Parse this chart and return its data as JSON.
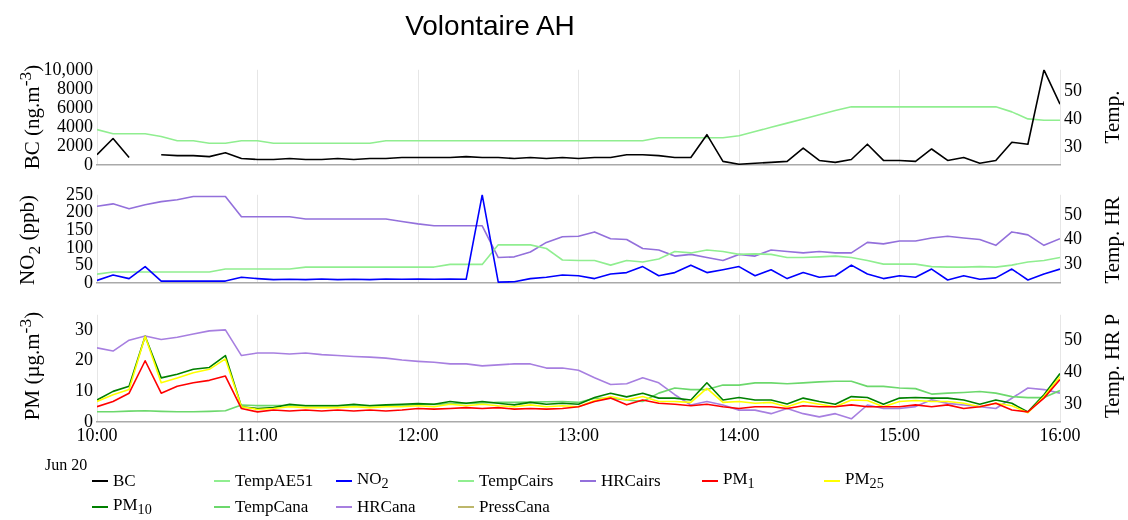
{
  "chart_data": [
    {
      "type": "line",
      "title": "Volontaire AH",
      "ylabel": "BC (ng.m$^{-3}$)",
      "y2label": "Temp.",
      "grid": "x",
      "legend": "bottom",
      "tick_labels": "y",
      "xlim": [
        10,
        16
      ],
      "xticks": [
        {
          "value": 10,
          "label": null
        },
        {
          "value": 11,
          "label": null
        },
        {
          "value": 12,
          "label": null
        },
        {
          "value": 13,
          "label": null
        },
        {
          "value": 14,
          "label": null
        },
        {
          "value": 15,
          "label": null
        },
        {
          "value": 16,
          "label": null
        }
      ],
      "ylim": [
        0,
        10000
      ],
      "yticks": [
        0,
        2000,
        4000,
        6000,
        8000,
        {
          "value": 10000,
          "label": "10,000"
        }
      ],
      "y2lim": [
        23.5,
        57.5
      ],
      "y2ticks": [
        30,
        40,
        50
      ],
      "x": [
        10,
        10.1,
        10.2,
        10.3,
        10.4,
        10.5,
        10.6,
        10.7,
        10.8,
        10.9,
        11,
        11.1,
        11.2,
        11.3,
        11.4,
        11.5,
        11.6,
        11.7,
        11.8,
        11.9,
        12,
        12.1,
        12.2,
        12.3,
        12.4,
        12.5,
        12.6,
        12.7,
        12.8,
        12.9,
        13,
        13.1,
        13.2,
        13.3,
        13.4,
        13.5,
        13.6,
        13.7,
        13.8,
        13.9,
        14,
        14.1,
        14.2,
        14.3,
        14.4,
        14.5,
        14.6,
        14.7,
        14.8,
        14.9,
        15,
        15.1,
        15.2,
        15.3,
        15.4,
        15.5,
        15.6,
        15.7,
        15.8,
        15.9,
        16
      ],
      "series": [
        {
          "name": "BC",
          "color": "#000000",
          "values": [
            1100,
            2800,
            800,
            null,
            1100,
            1000,
            1000,
            900,
            1300,
            700,
            600,
            600,
            700,
            600,
            600,
            700,
            600,
            700,
            700,
            800,
            800,
            800,
            800,
            900,
            800,
            800,
            700,
            800,
            700,
            800,
            700,
            800,
            800,
            1100,
            1100,
            1000,
            800,
            800,
            3200,
            400,
            100,
            200,
            300,
            400,
            1800,
            500,
            300,
            600,
            2200,
            500,
            500,
            400,
            1700,
            500,
            800,
            200,
            500,
            2400,
            2200,
            10000,
            6400
          ]
        },
        {
          "name": "TempAE51",
          "color": "#90ee90",
          "axis": "y2",
          "values": [
            36.2,
            34.7,
            34.7,
            34.7,
            33.7,
            32.2,
            32.2,
            31.3,
            31.3,
            32.2,
            32.2,
            31.3,
            31.3,
            31.3,
            31.3,
            31.3,
            31.3,
            31.3,
            32.2,
            32.2,
            32.2,
            32.2,
            32.2,
            32.2,
            32.2,
            32.2,
            32.2,
            32.2,
            32.2,
            32.2,
            32.2,
            32.2,
            32.2,
            32.2,
            32.2,
            33.3,
            33.3,
            33.3,
            33.3,
            33.3,
            34,
            35.5,
            37,
            38.5,
            40,
            41.5,
            43,
            44.3,
            44.3,
            44.3,
            44.3,
            44.3,
            44.3,
            44.3,
            44.3,
            44.3,
            44.3,
            42.5,
            40,
            39.5,
            39.5
          ]
        }
      ]
    },
    {
      "type": "line",
      "ylabel": "NO$_{2}$ (ppb)",
      "y2label": "Temp. HR",
      "grid": "x",
      "legend": "bottom",
      "tick_labels": "y",
      "xlim": [
        10,
        16
      ],
      "xticks": [
        {
          "value": 10,
          "label": null
        },
        {
          "value": 11,
          "label": null
        },
        {
          "value": 12,
          "label": null
        },
        {
          "value": 13,
          "label": null
        },
        {
          "value": 14,
          "label": null
        },
        {
          "value": 15,
          "label": null
        },
        {
          "value": 16,
          "label": null
        }
      ],
      "ylim": [
        0,
        250
      ],
      "yticks": [
        0,
        50,
        100,
        150,
        200,
        250
      ],
      "y2lim": [
        22.2,
        58.4
      ],
      "y2ticks": [
        30,
        40,
        50
      ],
      "x": [
        10,
        10.1,
        10.2,
        10.3,
        10.4,
        10.5,
        10.6,
        10.7,
        10.8,
        10.9,
        11,
        11.1,
        11.2,
        11.3,
        11.4,
        11.5,
        11.6,
        11.7,
        11.8,
        11.9,
        12,
        12.1,
        12.2,
        12.3,
        12.4,
        12.5,
        12.6,
        12.7,
        12.8,
        12.9,
        13,
        13.1,
        13.2,
        13.3,
        13.4,
        13.5,
        13.6,
        13.7,
        13.8,
        13.9,
        14,
        14.1,
        14.2,
        14.3,
        14.4,
        14.5,
        14.6,
        14.7,
        14.8,
        14.9,
        15,
        15.1,
        15.2,
        15.3,
        15.4,
        15.5,
        15.6,
        15.7,
        15.8,
        15.9,
        16
      ],
      "series": [
        {
          "name": "NO$_{2}$",
          "color": "#0000ff",
          "values": [
            8,
            23,
            13,
            47,
            6,
            6,
            6,
            6,
            6,
            17,
            13,
            10,
            11,
            10,
            12,
            10,
            11,
            10,
            12,
            11,
            12,
            11,
            12,
            11,
            250,
            3,
            4,
            13,
            17,
            23,
            21,
            13,
            26,
            30,
            47,
            21,
            30,
            51,
            30,
            38,
            47,
            21,
            38,
            13,
            30,
            17,
            21,
            51,
            26,
            13,
            21,
            17,
            40,
            9,
            21,
            11,
            15,
            40,
            9,
            26,
            40
          ]
        },
        {
          "name": "TempCairs",
          "color": "#90ee90",
          "axis": "y2",
          "values": [
            25.9,
            26.8,
            26.8,
            26.8,
            26.8,
            26.8,
            26.8,
            26.8,
            28,
            28,
            28,
            28,
            28,
            28.8,
            28.8,
            28.8,
            28.8,
            28.8,
            28.8,
            28.8,
            28.8,
            28.8,
            29.9,
            29.9,
            29.9,
            37.9,
            37.9,
            37.9,
            36.4,
            31.7,
            31.5,
            31.5,
            29.6,
            31.5,
            30.9,
            32.1,
            35.2,
            34.6,
            35.8,
            35.2,
            34,
            34.2,
            34,
            32.7,
            32.7,
            33,
            33.3,
            32.7,
            31.5,
            30,
            30,
            30,
            29,
            28.8,
            28.8,
            29,
            28.8,
            29.6,
            30.9,
            31.5,
            32.7
          ]
        },
        {
          "name": "HRCairs",
          "color": "#9370db",
          "axis": "y2",
          "values": [
            53.7,
            54.7,
            52.7,
            54.3,
            55.6,
            56.4,
            57.7,
            57.7,
            57.7,
            49.4,
            49.4,
            49.4,
            49.4,
            48.5,
            48.5,
            48.5,
            48.5,
            48.5,
            48.5,
            47.5,
            46.5,
            45.7,
            45.7,
            45.7,
            45.7,
            32.7,
            33,
            35,
            38.9,
            41.2,
            41.4,
            43.2,
            40.4,
            40.1,
            36.4,
            35.8,
            33.3,
            34,
            32.7,
            31.5,
            34,
            33.3,
            35.8,
            35.2,
            34.6,
            35.2,
            34.6,
            34.6,
            38.9,
            38.3,
            39.5,
            39.5,
            40.7,
            41.4,
            40.7,
            40.1,
            37.7,
            43.2,
            42,
            37.7,
            40.4
          ]
        }
      ]
    },
    {
      "type": "line",
      "ylabel": "PM (µg.m$^{-3}$)",
      "y2label": "Temp. HR P",
      "grid": "x",
      "legend": "bottom",
      "annotations": [
        "Jun 20"
      ],
      "xlim": [
        10,
        16
      ],
      "xticks": [
        {
          "value": 10,
          "label": "10:00"
        },
        {
          "value": 11,
          "label": "11:00"
        },
        {
          "value": 12,
          "label": "12:00"
        },
        {
          "value": 13,
          "label": "13:00"
        },
        {
          "value": 14,
          "label": "14:00"
        },
        {
          "value": 15,
          "label": "15:00"
        },
        {
          "value": 16,
          "label": "16:00"
        }
      ],
      "ylim": [
        0,
        35
      ],
      "yticks": [
        0,
        10,
        20,
        30
      ],
      "y2lim": [
        24.5,
        57.9
      ],
      "y2ticks": [
        30,
        40,
        50
      ],
      "x": [
        10,
        10.1,
        10.2,
        10.3,
        10.4,
        10.5,
        10.6,
        10.7,
        10.8,
        10.9,
        11,
        11.1,
        11.2,
        11.3,
        11.4,
        11.5,
        11.6,
        11.7,
        11.8,
        11.9,
        12,
        12.1,
        12.2,
        12.3,
        12.4,
        12.5,
        12.6,
        12.7,
        12.8,
        12.9,
        13,
        13.1,
        13.2,
        13.3,
        13.4,
        13.5,
        13.6,
        13.7,
        13.8,
        13.9,
        14,
        14.1,
        14.2,
        14.3,
        14.4,
        14.5,
        14.6,
        14.7,
        14.8,
        14.9,
        15,
        15.1,
        15.2,
        15.3,
        15.4,
        15.5,
        15.6,
        15.7,
        15.8,
        15.9,
        16
      ],
      "series": [
        {
          "name": "PM$_{1}$",
          "color": "#ff0000",
          "values": [
            5,
            6.7,
            9.4,
            20,
            9.4,
            11.7,
            12.8,
            13.6,
            15,
            4.4,
            3.3,
            3.9,
            3.6,
            3.9,
            3.6,
            3.9,
            3.6,
            3.9,
            3.6,
            3.9,
            4.4,
            4.2,
            4.4,
            4.7,
            4.4,
            4.7,
            4.2,
            4.4,
            4.2,
            4.4,
            5,
            6.7,
            7.8,
            5.6,
            7.2,
            6.1,
            5.8,
            5.3,
            5.8,
            5,
            4.4,
            5,
            5,
            4.4,
            5.3,
            5,
            5,
            5.6,
            5,
            5,
            5,
            5.6,
            5,
            5.6,
            4.4,
            5,
            6.1,
            3.9,
            3.3,
            7.8,
            13.9
          ]
        },
        {
          "name": "PM$_{25}$",
          "color": "#ffff00",
          "values": [
            6.7,
            8.9,
            10.6,
            28,
            12.8,
            14.4,
            16.1,
            17.2,
            20.6,
            5,
            4.1,
            4.4,
            5,
            4.7,
            4.7,
            4.7,
            5,
            4.7,
            5,
            5,
            5.3,
            5,
            5.8,
            5.3,
            5.8,
            5.3,
            5,
            5.6,
            5,
            5.3,
            5,
            7,
            8.3,
            7.2,
            8.3,
            6.7,
            6.7,
            6.4,
            11,
            6.4,
            6.7,
            6.1,
            6.4,
            5,
            6.7,
            5.8,
            5,
            7.2,
            7,
            5,
            6.7,
            7,
            6.7,
            6.7,
            6.1,
            5,
            6.1,
            5.3,
            3,
            8.3,
            14.8
          ]
        },
        {
          "name": "PM$_{10}$",
          "color": "#008000",
          "values": [
            7.2,
            10,
            11.7,
            28,
            14.4,
            15.6,
            17.2,
            17.8,
            21.7,
            5,
            4.4,
            4.7,
            5.8,
            5.3,
            5.3,
            5.3,
            5.8,
            5.3,
            5.6,
            5.8,
            6,
            5.8,
            6.7,
            6.1,
            6.7,
            6.1,
            5.6,
            6.4,
            5.8,
            6.1,
            5.8,
            8,
            9.4,
            8.2,
            9.4,
            7.8,
            7.8,
            7.2,
            12.8,
            7.2,
            8,
            7.2,
            7.2,
            5.9,
            7.8,
            6.7,
            5.8,
            8.3,
            8,
            5.8,
            7.8,
            8,
            7.8,
            7.8,
            7.2,
            5.8,
            7.2,
            6.1,
            3.3,
            8.9,
            15.8
          ]
        },
        {
          "name": "TempCana",
          "color": "#6cd86c",
          "axis": "y2",
          "values": [
            27.7,
            27.7,
            27.9,
            28,
            27.8,
            27.7,
            27.7,
            27.8,
            28,
            29.8,
            29.6,
            29.6,
            29.6,
            29.6,
            29.6,
            29.6,
            29.6,
            29.6,
            29.6,
            29.6,
            30,
            30,
            30.2,
            30.3,
            30.4,
            30.6,
            30.6,
            30.7,
            30.8,
            30.9,
            30.6,
            31.9,
            31.9,
            31.4,
            30.9,
            33.5,
            35.1,
            34.6,
            34.6,
            36,
            36,
            36.7,
            36.7,
            36.4,
            36.7,
            37,
            37.2,
            37.2,
            35.6,
            35.6,
            35.1,
            34.9,
            33.2,
            33.5,
            33.7,
            34,
            33.5,
            32.4,
            32.1,
            32.1,
            34.3
          ]
        },
        {
          "name": "HRCana",
          "color": "#a77fe0",
          "axis": "y2",
          "values": [
            47.6,
            46.6,
            50,
            51.3,
            50.2,
            50.9,
            51.9,
            52.9,
            53.2,
            45.2,
            46,
            46,
            45.7,
            46,
            45.5,
            45.2,
            44.9,
            44.7,
            44.4,
            43.8,
            43.4,
            43.1,
            42.6,
            42.6,
            42,
            42.3,
            42.6,
            42.6,
            41.3,
            41.3,
            40.6,
            38.3,
            36.2,
            36.4,
            38.3,
            36.7,
            33,
            29.8,
            30.9,
            29.8,
            28.2,
            28.2,
            27.1,
            28.7,
            27.1,
            26.1,
            27.1,
            25.5,
            29.8,
            28.7,
            28.7,
            29.3,
            31.4,
            30.3,
            29.8,
            29.3,
            28.7,
            31.9,
            35.1,
            34.6,
            33.5
          ]
        },
        {
          "name": "PressCana",
          "color": "#bdb76b",
          "axis": "y2",
          "values": [
            null,
            null,
            null,
            null,
            null,
            null,
            null,
            null,
            null,
            null,
            null,
            null,
            null,
            null,
            null,
            null,
            null,
            null,
            null,
            null,
            null,
            null,
            null,
            null,
            null,
            null,
            null,
            null,
            null,
            null,
            null,
            null,
            null,
            null,
            null,
            null,
            null,
            null,
            null,
            null,
            null,
            null,
            null,
            null,
            null,
            null,
            null,
            null,
            null,
            null,
            null,
            null,
            null,
            null,
            null,
            null,
            null,
            null,
            null,
            null,
            null
          ]
        }
      ]
    }
  ]
}
